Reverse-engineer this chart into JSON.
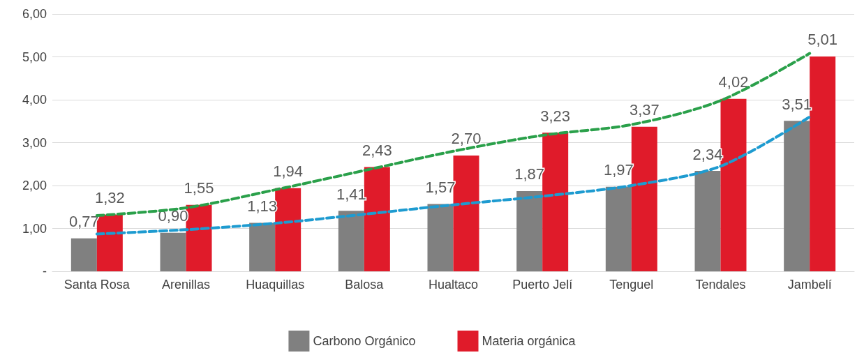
{
  "chart_data": {
    "type": "bar",
    "categories": [
      "Santa Rosa",
      "Arenillas",
      "Huaquillas",
      "Balosa",
      "Hualtaco",
      "Puerto Jelí",
      "Tenguel",
      "Tendales",
      "Jambelí"
    ],
    "series": [
      {
        "name": "Carbono Orgánico",
        "color": "#808080",
        "values": [
          0.77,
          0.9,
          1.13,
          1.41,
          1.57,
          1.87,
          1.97,
          2.34,
          3.51
        ],
        "value_labels": [
          "0,77",
          "0,90",
          "1,13",
          "1,41",
          "1,57",
          "1,87",
          "1,97",
          "2,34",
          "3,51"
        ]
      },
      {
        "name": "Materia orgánica",
        "color": "#e01b2a",
        "values": [
          1.32,
          1.55,
          1.94,
          2.43,
          2.7,
          3.23,
          3.37,
          4.02,
          5.01
        ],
        "value_labels": [
          "1,32",
          "1,55",
          "1,94",
          "2,43",
          "2,70",
          "3,23",
          "3,37",
          "4,02",
          "5,01"
        ]
      },
      {
        "type": "line",
        "color": "#1e9bd0",
        "line_style": "dashed",
        "values": [
          0.87,
          0.97,
          1.12,
          1.33,
          1.55,
          1.75,
          2.0,
          2.45,
          3.6
        ]
      },
      {
        "type": "line",
        "color": "#2aa04a",
        "line_style": "dashed",
        "values": [
          1.3,
          1.48,
          1.9,
          2.35,
          2.8,
          3.17,
          3.42,
          3.98,
          5.08
        ]
      }
    ],
    "ylim": [
      0,
      6
    ],
    "yticks": [
      {
        "value": 0,
        "label": "-"
      },
      {
        "value": 1,
        "label": "1,00"
      },
      {
        "value": 2,
        "label": "2,00"
      },
      {
        "value": 3,
        "label": "3,00"
      },
      {
        "value": 4,
        "label": "4,00"
      },
      {
        "value": 5,
        "label": "5,00"
      },
      {
        "value": 6,
        "label": "6,00"
      }
    ],
    "grid": "y",
    "legend": "bottom",
    "marker": "none"
  }
}
